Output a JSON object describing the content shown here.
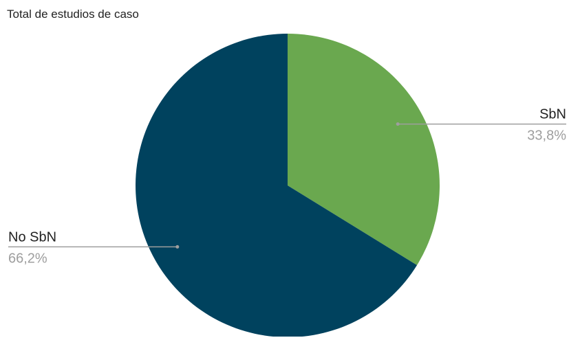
{
  "chart_data": {
    "type": "pie",
    "title": "Total de estudios de caso",
    "start_angle_deg": 0,
    "direction": "clockwise",
    "legend": "none",
    "slices": [
      {
        "label": "SbN",
        "value": 33.8,
        "value_text": "33,8%",
        "color": "#6aa84f",
        "label_side": "right"
      },
      {
        "label": "No SbN",
        "value": 66.2,
        "value_text": "66,2%",
        "color": "#00425e",
        "label_side": "left"
      }
    ],
    "leader_line_color": "#9e9e9e"
  }
}
